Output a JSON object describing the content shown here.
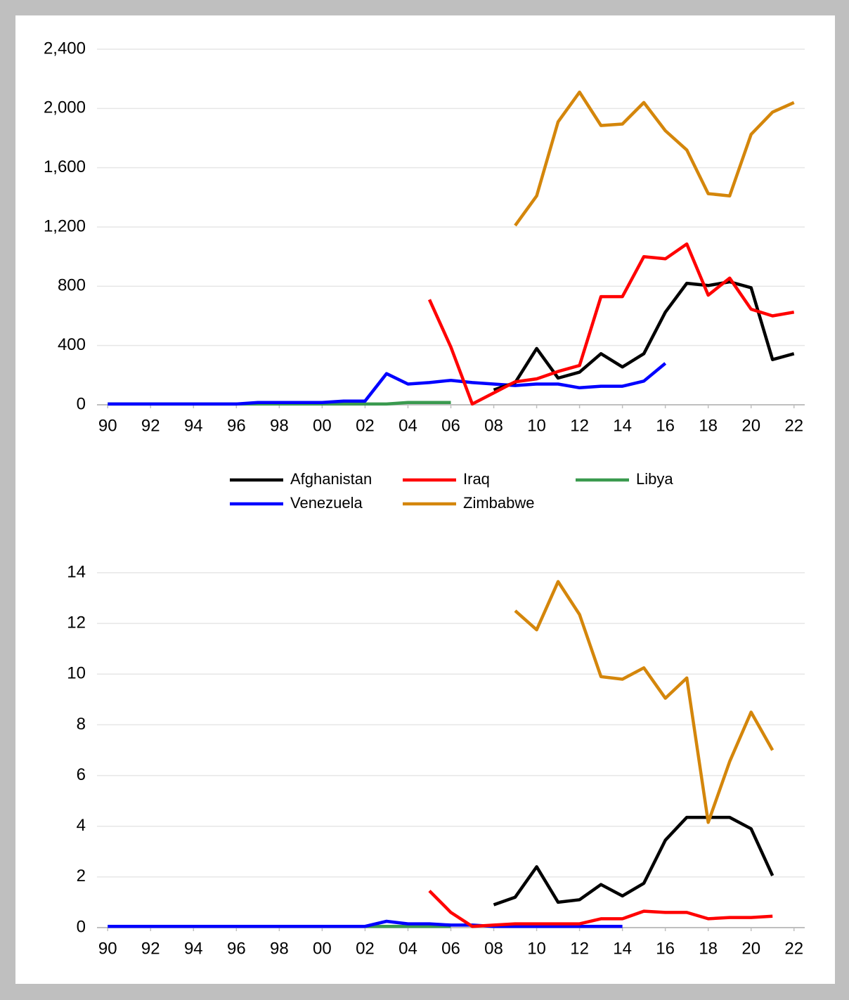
{
  "chart_data": [
    {
      "type": "line",
      "legend": "bottom",
      "grid": true,
      "x": [
        1990,
        1991,
        1992,
        1993,
        1994,
        1995,
        1996,
        1997,
        1998,
        1999,
        2000,
        2001,
        2002,
        2003,
        2004,
        2005,
        2006,
        2007,
        2008,
        2009,
        2010,
        2011,
        2012,
        2013,
        2014,
        2015,
        2016,
        2017,
        2018,
        2019,
        2020,
        2021,
        2022
      ],
      "xlim": [
        1989.5,
        2022.5
      ],
      "xticks": [
        {
          "value": 1990,
          "label": "90"
        },
        {
          "value": 1992,
          "label": "92"
        },
        {
          "value": 1994,
          "label": "94"
        },
        {
          "value": 1996,
          "label": "96"
        },
        {
          "value": 1998,
          "label": "98"
        },
        {
          "value": 2000,
          "label": "00"
        },
        {
          "value": 2002,
          "label": "02"
        },
        {
          "value": 2004,
          "label": "04"
        },
        {
          "value": 2006,
          "label": "06"
        },
        {
          "value": 2008,
          "label": "08"
        },
        {
          "value": 2010,
          "label": "10"
        },
        {
          "value": 2012,
          "label": "12"
        },
        {
          "value": 2014,
          "label": "14"
        },
        {
          "value": 2016,
          "label": "16"
        },
        {
          "value": 2018,
          "label": "18"
        },
        {
          "value": 2020,
          "label": "20"
        },
        {
          "value": 2022,
          "label": "22"
        }
      ],
      "ylim": [
        0,
        2400
      ],
      "yticks": [
        0,
        400,
        800,
        {
          "value": 1200,
          "label": "1,200"
        },
        {
          "value": 1600,
          "label": "1,600"
        },
        {
          "value": 2000,
          "label": "2,000"
        },
        {
          "value": 2400,
          "label": "2,400"
        }
      ],
      "series": [
        {
          "name": "Libya",
          "color": "#3a9a4f",
          "values": [
            5,
            5,
            5,
            5,
            5,
            5,
            5,
            5,
            5,
            5,
            5,
            5,
            5,
            5,
            15,
            15,
            15,
            null,
            null,
            null,
            null,
            null,
            null,
            null,
            null,
            null,
            null,
            null,
            null,
            null,
            null,
            null,
            null
          ]
        },
        {
          "name": "Venezuela",
          "color": "#0000ff",
          "values": [
            5,
            5,
            5,
            5,
            5,
            5,
            5,
            15,
            15,
            15,
            15,
            25,
            25,
            210,
            140,
            150,
            165,
            150,
            140,
            130,
            140,
            140,
            115,
            125,
            125,
            160,
            280,
            null,
            null,
            null,
            null,
            null,
            null
          ]
        },
        {
          "name": "Afghanistan",
          "color": "#000000",
          "values": [
            null,
            null,
            null,
            null,
            null,
            null,
            null,
            null,
            null,
            null,
            null,
            null,
            null,
            null,
            null,
            null,
            null,
            null,
            100,
            150,
            380,
            180,
            220,
            345,
            255,
            345,
            625,
            820,
            805,
            830,
            790,
            305,
            345
          ]
        },
        {
          "name": "Iraq",
          "color": "#ff0000",
          "values": [
            null,
            null,
            null,
            null,
            null,
            null,
            null,
            null,
            null,
            null,
            null,
            null,
            null,
            null,
            null,
            710,
            390,
            5,
            80,
            155,
            175,
            225,
            265,
            730,
            730,
            1000,
            985,
            1085,
            740,
            855,
            645,
            600,
            625
          ]
        },
        {
          "name": "Zimbabwe",
          "color": "#d4860b",
          "values": [
            null,
            null,
            null,
            null,
            null,
            null,
            null,
            null,
            null,
            null,
            null,
            null,
            null,
            null,
            null,
            null,
            null,
            null,
            null,
            1210,
            1410,
            1910,
            2110,
            1885,
            1895,
            2040,
            1850,
            1720,
            1425,
            1410,
            1825,
            1975,
            2040
          ]
        }
      ],
      "legend_order": [
        "Afghanistan",
        "Iraq",
        "Libya",
        "Venezuela",
        "Zimbabwe"
      ]
    },
    {
      "type": "line",
      "grid": true,
      "x": [
        1990,
        1991,
        1992,
        1993,
        1994,
        1995,
        1996,
        1997,
        1998,
        1999,
        2000,
        2001,
        2002,
        2003,
        2004,
        2005,
        2006,
        2007,
        2008,
        2009,
        2010,
        2011,
        2012,
        2013,
        2014,
        2015,
        2016,
        2017,
        2018,
        2019,
        2020,
        2021,
        2022
      ],
      "xlim": [
        1989.5,
        2022.5
      ],
      "xticks": [
        {
          "value": 1990,
          "label": "90"
        },
        {
          "value": 1992,
          "label": "92"
        },
        {
          "value": 1994,
          "label": "94"
        },
        {
          "value": 1996,
          "label": "96"
        },
        {
          "value": 1998,
          "label": "98"
        },
        {
          "value": 2000,
          "label": "00"
        },
        {
          "value": 2002,
          "label": "02"
        },
        {
          "value": 2004,
          "label": "04"
        },
        {
          "value": 2006,
          "label": "06"
        },
        {
          "value": 2008,
          "label": "08"
        },
        {
          "value": 2010,
          "label": "10"
        },
        {
          "value": 2012,
          "label": "12"
        },
        {
          "value": 2014,
          "label": "14"
        },
        {
          "value": 2016,
          "label": "16"
        },
        {
          "value": 2018,
          "label": "18"
        },
        {
          "value": 2020,
          "label": "20"
        },
        {
          "value": 2022,
          "label": "22"
        }
      ],
      "ylim": [
        0,
        14
      ],
      "yticks": [
        0,
        2,
        4,
        6,
        8,
        10,
        12,
        14
      ],
      "series": [
        {
          "color": "#3a9a4f",
          "values": [
            0.05,
            0.05,
            0.05,
            0.05,
            0.05,
            0.05,
            0.05,
            0.05,
            0.05,
            0.05,
            0.05,
            0.05,
            0.05,
            0.05,
            0.05,
            0.05,
            0.05,
            null,
            null,
            null,
            null,
            null,
            null,
            null,
            null,
            null,
            null,
            null,
            null,
            null,
            null,
            null,
            null
          ]
        },
        {
          "color": "#0000ff",
          "values": [
            0.05,
            0.05,
            0.05,
            0.05,
            0.05,
            0.05,
            0.05,
            0.05,
            0.05,
            0.05,
            0.05,
            0.05,
            0.05,
            0.25,
            0.15,
            0.15,
            0.1,
            0.1,
            0.05,
            0.05,
            0.05,
            0.05,
            0.05,
            0.05,
            0.05,
            null,
            null,
            null,
            null,
            null,
            null,
            null,
            null
          ]
        },
        {
          "color": "#000000",
          "values": [
            null,
            null,
            null,
            null,
            null,
            null,
            null,
            null,
            null,
            null,
            null,
            null,
            null,
            null,
            null,
            null,
            null,
            null,
            0.9,
            1.2,
            2.4,
            1.0,
            1.1,
            1.7,
            1.25,
            1.75,
            3.45,
            4.35,
            4.35,
            4.35,
            3.9,
            2.05,
            null
          ]
        },
        {
          "color": "#ff0000",
          "values": [
            null,
            null,
            null,
            null,
            null,
            null,
            null,
            null,
            null,
            null,
            null,
            null,
            null,
            null,
            null,
            1.45,
            0.6,
            0.05,
            0.1,
            0.15,
            0.15,
            0.15,
            0.15,
            0.35,
            0.35,
            0.65,
            0.6,
            0.6,
            0.35,
            0.4,
            0.4,
            0.45,
            null
          ]
        },
        {
          "color": "#d4860b",
          "values": [
            null,
            null,
            null,
            null,
            null,
            null,
            null,
            null,
            null,
            null,
            null,
            null,
            null,
            null,
            null,
            null,
            null,
            null,
            null,
            12.5,
            11.75,
            13.65,
            12.35,
            9.9,
            9.8,
            10.25,
            9.05,
            9.85,
            4.15,
            6.55,
            8.5,
            7.0,
            null
          ]
        }
      ]
    }
  ]
}
